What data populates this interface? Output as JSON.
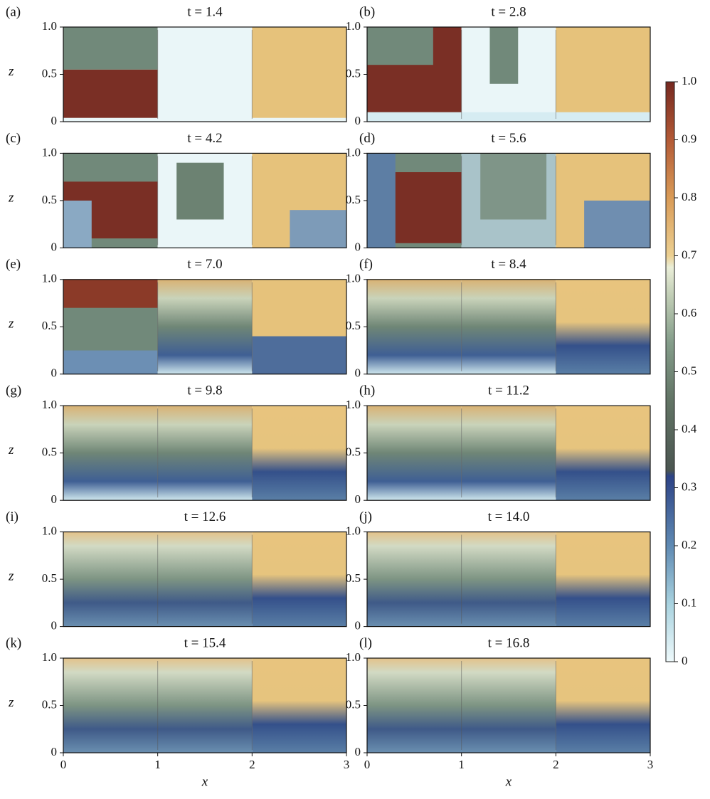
{
  "chart_data": [
    {
      "type": "field",
      "label": "(a)",
      "title": "t = 1.4",
      "ylabel": "z",
      "xlim": [
        0,
        3
      ],
      "ylim": [
        0,
        1
      ],
      "yticks": [
        0,
        0.5,
        {
          "value": 1,
          "label": "1.0"
        }
      ]
    },
    {
      "type": "field",
      "label": "(b)",
      "title": "t = 2.8",
      "xlim": [
        0,
        3
      ],
      "ylim": [
        0,
        1
      ],
      "yticks": [
        0,
        0.5,
        {
          "value": 1,
          "label": "1.0"
        }
      ]
    },
    {
      "type": "field",
      "label": "(c)",
      "title": "t = 4.2",
      "ylabel": "z",
      "xlim": [
        0,
        3
      ],
      "ylim": [
        0,
        1
      ],
      "yticks": [
        0,
        0.5,
        {
          "value": 1,
          "label": "1.0"
        }
      ]
    },
    {
      "type": "field",
      "label": "(d)",
      "title": "t = 5.6",
      "xlim": [
        0,
        3
      ],
      "ylim": [
        0,
        1
      ],
      "yticks": [
        0,
        0.5,
        {
          "value": 1,
          "label": "1.0"
        }
      ]
    },
    {
      "type": "field",
      "label": "(e)",
      "title": "t = 7.0",
      "ylabel": "z",
      "xlim": [
        0,
        3
      ],
      "ylim": [
        0,
        1
      ],
      "yticks": [
        0,
        0.5,
        {
          "value": 1,
          "label": "1.0"
        }
      ]
    },
    {
      "type": "field",
      "label": "(f)",
      "title": "t = 8.4",
      "xlim": [
        0,
        3
      ],
      "ylim": [
        0,
        1
      ],
      "yticks": [
        0,
        0.5,
        {
          "value": 1,
          "label": "1.0"
        }
      ]
    },
    {
      "type": "field",
      "label": "(g)",
      "title": "t = 9.8",
      "ylabel": "z",
      "xlim": [
        0,
        3
      ],
      "ylim": [
        0,
        1
      ],
      "yticks": [
        0,
        0.5,
        {
          "value": 1,
          "label": "1.0"
        }
      ]
    },
    {
      "type": "field",
      "label": "(h)",
      "title": "t = 11.2",
      "xlim": [
        0,
        3
      ],
      "ylim": [
        0,
        1
      ],
      "yticks": [
        0,
        0.5,
        {
          "value": 1,
          "label": "1.0"
        }
      ]
    },
    {
      "type": "field",
      "label": "(i)",
      "title": "t = 12.6",
      "ylabel": "z",
      "xlim": [
        0,
        3
      ],
      "ylim": [
        0,
        1
      ],
      "yticks": [
        0,
        0.5,
        {
          "value": 1,
          "label": "1.0"
        }
      ]
    },
    {
      "type": "field",
      "label": "(j)",
      "title": "t = 14.0",
      "xlim": [
        0,
        3
      ],
      "ylim": [
        0,
        1
      ],
      "yticks": [
        0,
        0.5,
        {
          "value": 1,
          "label": "1.0"
        }
      ]
    },
    {
      "type": "field",
      "label": "(k)",
      "title": "t = 15.4",
      "ylabel": "z",
      "xlabel": "x",
      "xlim": [
        0,
        3
      ],
      "ylim": [
        0,
        1
      ],
      "yticks": [
        0,
        0.5,
        {
          "value": 1,
          "label": "1.0"
        }
      ],
      "xticks": [
        0,
        1,
        2,
        3
      ]
    },
    {
      "type": "field",
      "label": "(l)",
      "title": "t = 16.8",
      "xlabel": "x",
      "xlim": [
        0,
        3
      ],
      "ylim": [
        0,
        1
      ],
      "yticks": [
        0,
        0.5,
        {
          "value": 1,
          "label": "1.0"
        }
      ],
      "xticks": [
        0,
        1,
        2,
        3
      ]
    }
  ],
  "colorbar": {
    "lim": [
      0,
      1
    ],
    "ticks": [
      0,
      0.1,
      0.2,
      0.3,
      0.4,
      0.5,
      0.6,
      0.7,
      0.8,
      0.9,
      {
        "value": 1,
        "label": "1.0"
      }
    ]
  }
}
